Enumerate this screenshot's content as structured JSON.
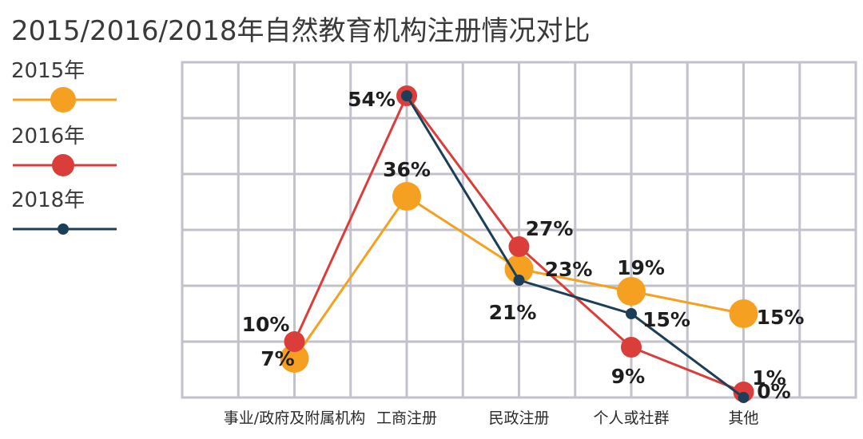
{
  "chart_data": {
    "type": "line",
    "title": "2015/2016/2018年自然教育机构注册情况对比",
    "categories": [
      "事业/政府及附属机构",
      "工商注册",
      "民政注册",
      "个人或社群",
      "其他"
    ],
    "ylim": [
      0,
      60
    ],
    "grid": true,
    "legend_position": "left",
    "series": [
      {
        "name": "2015年",
        "color": "#f5a020",
        "values": [
          7,
          36,
          23,
          19,
          15
        ],
        "labels": [
          "7%",
          "36%",
          "23%",
          "19%",
          "15%"
        ]
      },
      {
        "name": "2016年",
        "color": "#da3d3a",
        "values": [
          10,
          54,
          27,
          9,
          1
        ],
        "labels": [
          "10%",
          "54%",
          "27%",
          "9%",
          "1%"
        ]
      },
      {
        "name": "2018年",
        "color": "#1c3f57",
        "values": [
          null,
          54,
          21,
          15,
          0
        ],
        "labels": [
          "",
          "",
          "21%",
          "15%",
          "0%"
        ]
      }
    ]
  }
}
